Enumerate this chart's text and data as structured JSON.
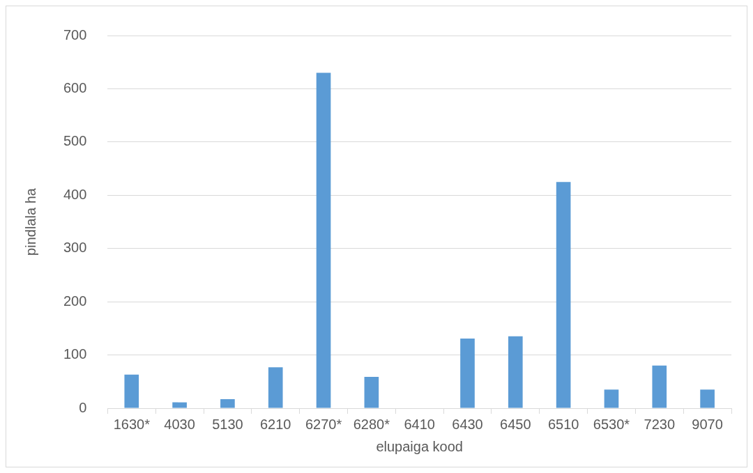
{
  "chart_data": {
    "type": "bar",
    "xlabel": "elupaiga kood",
    "ylabel": "pindlala ha",
    "categories": [
      "1630*",
      "4030",
      "5130",
      "6210",
      "6270*",
      "6280*",
      "6410",
      "6430",
      "6450",
      "6510",
      "6530*",
      "7230",
      "9070"
    ],
    "values": [
      63,
      11,
      17,
      77,
      630,
      59,
      0,
      131,
      135,
      425,
      35,
      80,
      35
    ],
    "color": "#5b9bd5",
    "ylim": [
      0,
      700
    ],
    "yticks": [
      0,
      100,
      200,
      300,
      400,
      500,
      600,
      700
    ],
    "grid": "y"
  }
}
